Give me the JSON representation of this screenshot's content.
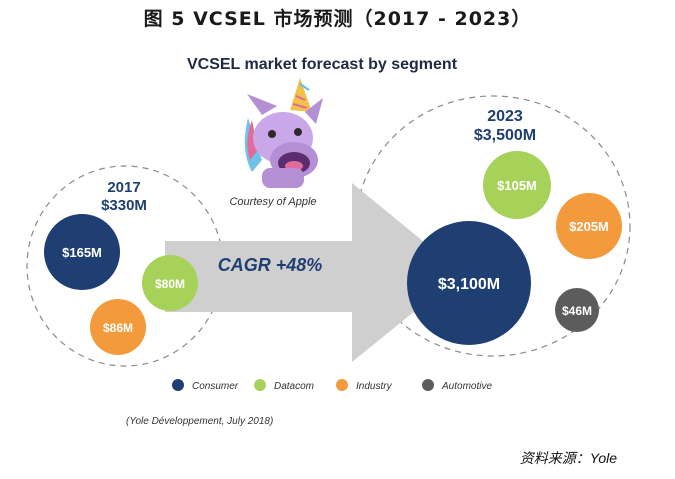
{
  "figure_title": "图 5  VCSEL 市场预测（2017 - 2023）",
  "source_note": "资料来源：Yole",
  "chart_data": {
    "type": "bubble",
    "title": "VCSEL market forecast by segment",
    "groups": [
      {
        "year": "2017",
        "total_label": "$330M",
        "items": [
          {
            "segment": "Consumer",
            "value": 165,
            "label": "$165M"
          },
          {
            "segment": "Datacom",
            "value": 80,
            "label": "$80M"
          },
          {
            "segment": "Industry",
            "value": 86,
            "label": "$86M"
          }
        ]
      },
      {
        "year": "2023",
        "total_label": "$3,500M",
        "items": [
          {
            "segment": "Consumer",
            "value": 3100,
            "label": "$3,100M"
          },
          {
            "segment": "Datacom",
            "value": 105,
            "label": "$105M"
          },
          {
            "segment": "Industry",
            "value": 205,
            "label": "$205M"
          },
          {
            "segment": "Automotive",
            "value": 46,
            "label": "$46M"
          }
        ]
      }
    ],
    "cagr_label": "CAGR +48%",
    "image_caption": "Courtesy of Apple",
    "legend": [
      {
        "name": "Consumer",
        "color": "#1f3f73"
      },
      {
        "name": "Datacom",
        "color": "#a6d25a"
      },
      {
        "name": "Industry",
        "color": "#f39a3c"
      },
      {
        "name": "Automotive",
        "color": "#5c5c5c"
      }
    ],
    "legend_position": "bottom",
    "credit": "(Yole Développement, July 2018)"
  }
}
